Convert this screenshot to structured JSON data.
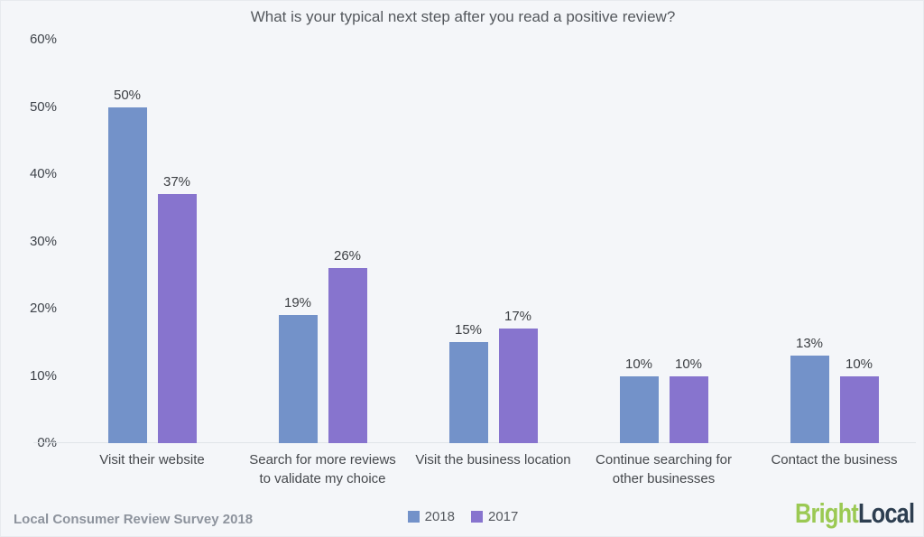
{
  "title": "What is your typical next step after you read a positive review?",
  "footer": {
    "source": "Local Consumer Review Survey 2018"
  },
  "logo": {
    "part1": "Bright",
    "part2": "Local",
    "part1_color": "#9bc953",
    "part2_color": "#2d3e50"
  },
  "colors": {
    "background": "#f4f6f9",
    "axis_line": "#e0e4e9",
    "series_2018": "#7392c9",
    "series_2017": "#8774ce"
  },
  "chart_data": {
    "type": "bar",
    "title": "What is your typical next step after you read a positive review?",
    "categories": [
      "Visit their website",
      "Search for more reviews to validate my choice",
      "Visit the business location",
      "Continue searching for other businesses",
      "Contact the business"
    ],
    "series": [
      {
        "name": "2018",
        "color": "#7392c9",
        "values": [
          50,
          19,
          15,
          10,
          13
        ]
      },
      {
        "name": "2017",
        "color": "#8774ce",
        "values": [
          37,
          26,
          17,
          10,
          10
        ]
      }
    ],
    "value_suffix": "%",
    "ylabel": "",
    "xlabel": "",
    "ylim": [
      0,
      60
    ],
    "ytick_interval": 10,
    "ytick_labels": [
      "60%",
      "50%",
      "40%",
      "30%",
      "20%",
      "10%",
      "0%"
    ],
    "grid": false,
    "legend_position": "bottom-center",
    "data_labels": true
  }
}
